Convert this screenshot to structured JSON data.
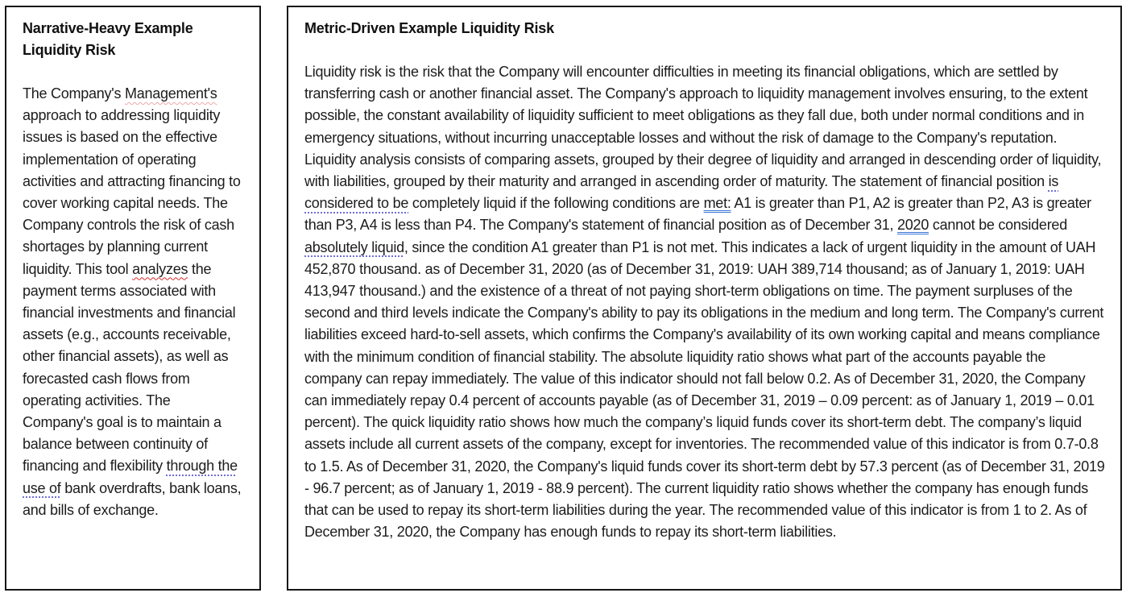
{
  "colors": {
    "spell-red": "#d92b2b",
    "spell-red-faint": "#eda9a9",
    "grammar-purple": "#6f6fd8",
    "grammar-blue": "#3b76d6",
    "border-black": "#161616",
    "text-black": "#1c1c1c"
  },
  "left_box": {
    "title": "Narrative-Heavy Example Liquidity Risk",
    "paragraph_segments": [
      {
        "style": "plain",
        "text": "The Company's "
      },
      {
        "style": "spell-error-faint",
        "text": "Management's"
      },
      {
        "style": "plain",
        "text": " approach to addressing liquidity issues is based on the effective implementation of operating activities and attracting financing to cover working capital needs. The Company controls the risk of cash shortages by planning current liquidity. This tool "
      },
      {
        "style": "spell-error",
        "text": "analyzes"
      },
      {
        "style": "plain",
        "text": " the payment terms associated with financial investments and financial assets (e.g., accounts receivable, other financial assets), as well as forecasted cash flows from operating activities. The Company's goal is to maintain a balance between continuity of financing and flexibility "
      },
      {
        "style": "grammar-dotted",
        "text": "through the use of"
      },
      {
        "style": "plain",
        "text": " bank overdrafts, bank loans, and bills of exchange."
      }
    ]
  },
  "right_box": {
    "title": "Metric-Driven Example Liquidity Risk",
    "paragraph_segments": [
      {
        "style": "plain",
        "text": "Liquidity risk is the risk that the Company will encounter difficulties in meeting its financial obligations, which are settled by transferring cash or another financial asset. The Company's approach to liquidity management involves ensuring, to the extent possible, the constant availability of liquidity sufficient to meet obligations as they fall due, both under normal conditions and in emergency situations, without incurring unacceptable losses and without the risk of damage to the Company's reputation. Liquidity analysis consists of comparing assets, grouped by their degree of liquidity and arranged in descending order of liquidity, with liabilities, grouped by their maturity and arranged in ascending order of maturity. The statement of financial position "
      },
      {
        "style": "grammar-dotted",
        "text": "is considered to be"
      },
      {
        "style": "plain",
        "text": " completely liquid if the following conditions are "
      },
      {
        "style": "grammar-double",
        "text": "met:"
      },
      {
        "style": "plain",
        "text": " A1 is greater than P1, A2 is greater than P2, A3 is greater than P3, A4 is less than P4. The Company's statement of financial position as of December 31, "
      },
      {
        "style": "grammar-double",
        "text": "2020"
      },
      {
        "style": "plain",
        "text": " cannot be considered "
      },
      {
        "style": "grammar-dotted",
        "text": "absolutely liquid"
      },
      {
        "style": "plain",
        "text": ", since the condition A1 greater than P1 is not met. This indicates a lack of urgent liquidity in the amount of UAH 452,870 thousand. as of December 31, 2020 (as of December 31, 2019: UAH 389,714 thousand; as of January 1, 2019: UAH 413,947 thousand.) and the existence of a threat of not paying short-term obligations on time. The payment surpluses of the second and third levels indicate the Company's ability to pay its obligations in the medium and long term. The Company's current liabilities exceed hard-to-sell assets, which confirms the Company's availability of its own working capital and means compliance with the minimum condition of financial stability. The absolute liquidity ratio shows what part of the accounts payable the company can repay immediately. The value of this indicator should not fall below 0.2. As of December 31, 2020, the Company can immediately repay 0.4 percent of accounts payable (as of December 31, 2019 – 0.09 percent: as of January 1, 2019 – 0.01 percent). The quick liquidity ratio shows how much the company’s liquid funds cover its short-term debt. The company’s liquid assets include all current assets of the company, except for inventories. The recommended value of this indicator is from 0.7-0.8 to 1.5. As of December 31, 2020, the Company's liquid funds cover its short-term debt by 57.3 percent (as of December 31, 2019 - 96.7 percent; as of January 1, 2019 - 88.9 percent). The current liquidity ratio shows whether the company has enough funds that can be used to repay its short-term liabilities during the year. The recommended value of this indicator is from 1 to 2. As of December 31, 2020, the Company has enough funds to repay its short-term liabilities."
      }
    ]
  }
}
